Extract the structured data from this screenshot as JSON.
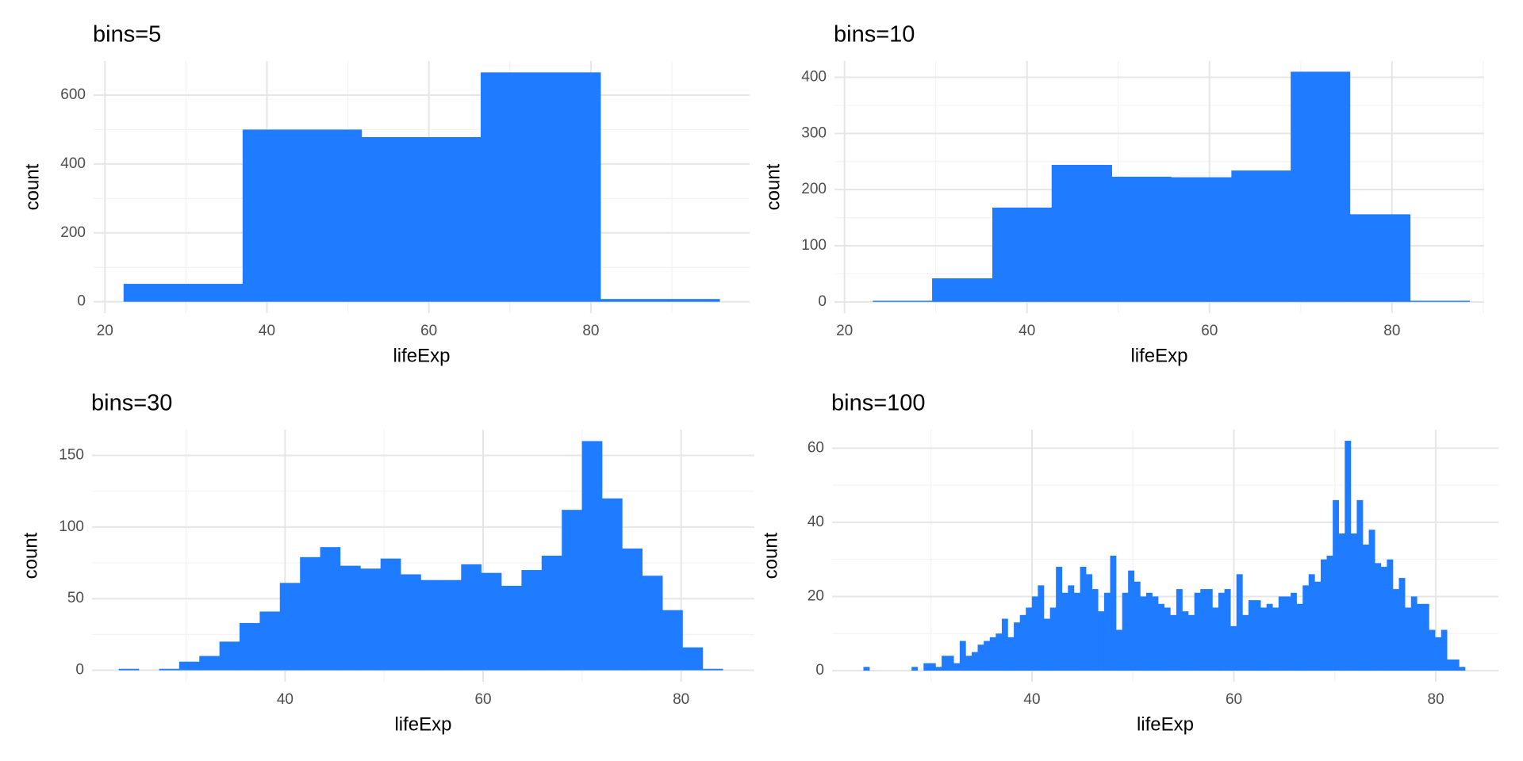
{
  "chart_data": [
    {
      "type": "histogram",
      "title": "bins=5",
      "x_label": "lifeExp",
      "y_label": "count",
      "bins": [
        22.3,
        37.0,
        51.7,
        66.4,
        81.2,
        95.9
      ],
      "values": [
        52,
        500,
        478,
        666,
        8
      ],
      "color": "#1f7bff",
      "xlim": [
        18.6,
        99.6
      ],
      "ylim": [
        -33,
        699
      ],
      "xticks": [
        20,
        40,
        60,
        80
      ],
      "yticks": [
        0,
        200,
        400,
        600
      ],
      "grid": true
    },
    {
      "type": "histogram",
      "title": "bins=10",
      "x_label": "lifeExp",
      "y_label": "count",
      "bins": [
        23.1,
        29.6,
        36.2,
        42.7,
        49.3,
        55.8,
        62.4,
        68.9,
        75.4,
        82.0,
        88.5
      ],
      "values": [
        2,
        42,
        168,
        244,
        223,
        222,
        234,
        410,
        156,
        2
      ],
      "color": "#1f7bff",
      "xlim": [
        18.9,
        90.1
      ],
      "ylim": [
        -20,
        429
      ],
      "xticks": [
        20,
        40,
        60,
        80
      ],
      "yticks": [
        0,
        100,
        200,
        300,
        400
      ],
      "grid": true
    },
    {
      "type": "histogram",
      "title": "bins=30",
      "x_label": "lifeExp",
      "y_label": "count",
      "bins": [
        23.2,
        25.23,
        27.27,
        29.3,
        31.34,
        33.37,
        35.4,
        37.44,
        39.47,
        41.51,
        43.54,
        45.57,
        47.61,
        49.64,
        51.68,
        53.71,
        55.74,
        57.78,
        59.81,
        61.85,
        63.88,
        65.91,
        67.95,
        69.98,
        72.02,
        74.05,
        76.08,
        78.12,
        80.15,
        82.19,
        84.22
      ],
      "values": [
        1,
        0,
        1,
        6,
        10,
        20,
        33,
        41,
        61,
        79,
        86,
        73,
        71,
        78,
        67,
        63,
        63,
        74,
        68,
        59,
        70,
        80,
        112,
        160,
        120,
        85,
        66,
        42,
        16,
        1
      ],
      "color": "#1f7bff",
      "xlim": [
        20.5,
        87.4
      ],
      "ylim": [
        -8,
        168
      ],
      "xticks": [
        40,
        60,
        80
      ],
      "yticks": [
        0,
        50,
        100,
        150
      ],
      "grid": true
    },
    {
      "type": "histogram",
      "title": "bins=100",
      "x_label": "lifeExp",
      "y_label": "count",
      "bins": [
        23.3,
        23.9,
        24.49,
        25.09,
        25.68,
        26.28,
        26.88,
        27.47,
        28.07,
        28.66,
        29.26,
        29.86,
        30.45,
        31.05,
        31.64,
        32.24,
        32.84,
        33.43,
        34.03,
        34.62,
        35.22,
        35.82,
        36.41,
        37.01,
        37.6,
        38.2,
        38.8,
        39.39,
        39.99,
        40.58,
        41.18,
        41.78,
        42.37,
        42.97,
        43.56,
        44.16,
        44.76,
        45.35,
        45.95,
        46.54,
        47.14,
        47.74,
        48.33,
        48.93,
        49.52,
        50.12,
        50.72,
        51.31,
        51.91,
        52.5,
        53.1,
        53.7,
        54.29,
        54.89,
        55.48,
        56.08,
        56.68,
        57.27,
        57.87,
        58.46,
        59.06,
        59.66,
        60.25,
        60.85,
        61.44,
        62.04,
        62.64,
        63.23,
        63.83,
        64.42,
        65.02,
        65.62,
        66.21,
        66.81,
        67.4,
        68.0,
        68.6,
        69.19,
        69.79,
        70.38,
        70.98,
        71.58,
        72.17,
        72.77,
        73.36,
        73.96,
        74.56,
        75.15,
        75.75,
        76.34,
        76.94,
        77.54,
        78.13,
        78.73,
        79.32,
        79.92,
        80.52,
        81.11,
        81.71,
        82.3,
        82.9
      ],
      "values": [
        1,
        0,
        0,
        0,
        0,
        0,
        0,
        0,
        1,
        0,
        2,
        2,
        1,
        4,
        4,
        2,
        8,
        4,
        5,
        7,
        8,
        9,
        10,
        14,
        9,
        13,
        15,
        17,
        20,
        23,
        14,
        17,
        28,
        21,
        23,
        21,
        28,
        26,
        22,
        16,
        21,
        31,
        11,
        21,
        27,
        24,
        20,
        21,
        20,
        18,
        17,
        15,
        22,
        16,
        15,
        21,
        22,
        22,
        17,
        21,
        22,
        12,
        26,
        15,
        19,
        19,
        17,
        18,
        17,
        20,
        20,
        21,
        18,
        23,
        26,
        24,
        30,
        31,
        46,
        37,
        62,
        37,
        46,
        34,
        38,
        29,
        28,
        30,
        22,
        25,
        17,
        20,
        18,
        18,
        11,
        9,
        11,
        3,
        3,
        1
      ],
      "color": "#1f7bff",
      "xlim": [
        20.2,
        86.2
      ],
      "ylim": [
        -3,
        65
      ],
      "xticks": [
        40,
        60,
        80
      ],
      "yticks": [
        0,
        20,
        40,
        60
      ],
      "grid": true
    }
  ]
}
